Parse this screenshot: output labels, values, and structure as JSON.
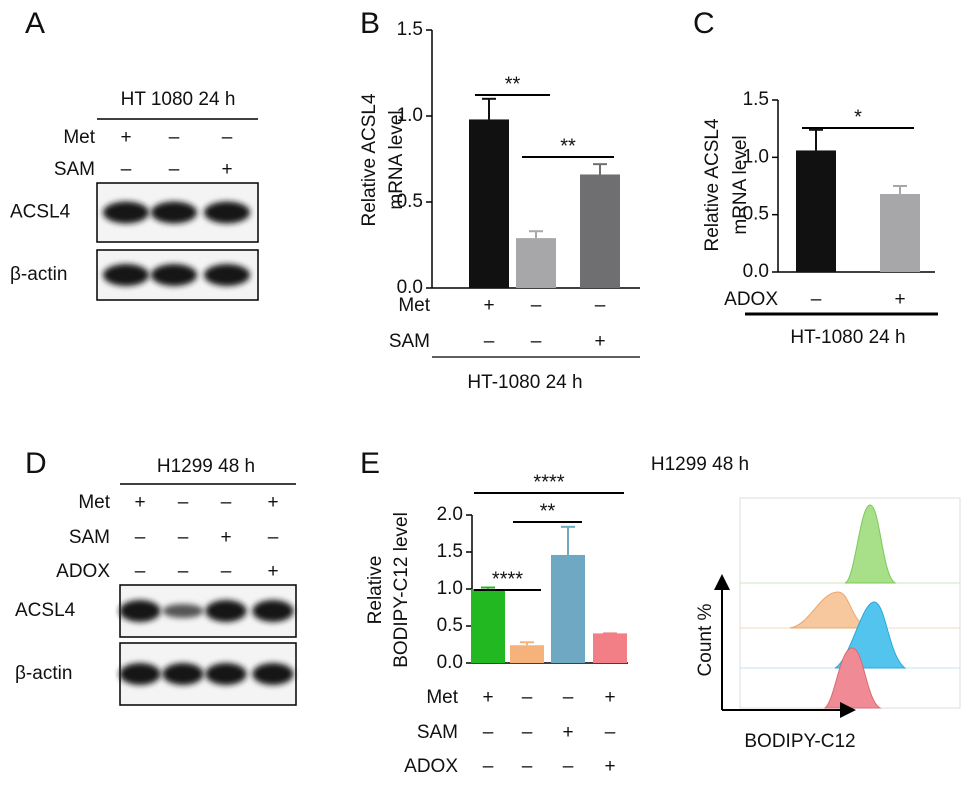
{
  "panel_labels": [
    "A",
    "B",
    "C",
    "D",
    "E"
  ],
  "blots": [
    {
      "title": "HT 1080 24 h",
      "rows": [
        {
          "label": "Met",
          "signs": [
            "+",
            "–",
            "–"
          ]
        },
        {
          "label": "SAM",
          "signs": [
            "–",
            "–",
            "+"
          ]
        }
      ],
      "bands": [
        "ACSL4",
        "β-actin"
      ]
    },
    {
      "title": "H1299 48 h",
      "rows": [
        {
          "label": "Met",
          "signs": [
            "+",
            "–",
            "–",
            "+"
          ]
        },
        {
          "label": "SAM",
          "signs": [
            "–",
            "–",
            "+",
            "–"
          ]
        },
        {
          "label": "ADOX",
          "signs": [
            "–",
            "–",
            "–",
            "+"
          ]
        }
      ],
      "bands": [
        "ACSL4",
        "β-actin"
      ]
    }
  ],
  "panel_e_title": "H1299 48 h",
  "flow": {
    "ylabel": "Count %",
    "xlabel": "BODIPY-C12"
  },
  "chart_data": [
    {
      "type": "bar",
      "ylabel": [
        "Relative ACSL4",
        "mRNA level"
      ],
      "values": [
        0.98,
        0.29,
        0.66
      ],
      "errors": [
        0.12,
        0.04,
        0.06
      ],
      "colors": [
        "#111111",
        "#a7a7aa",
        "#6f6f72"
      ],
      "ylim": [
        0,
        1.5
      ],
      "yticks": [
        {
          "value": 0,
          "label": "0.0"
        },
        0.5,
        {
          "value": 1,
          "label": "1.0"
        },
        1.5
      ],
      "conditions": [
        {
          "label": "Met",
          "signs": [
            "+",
            "–",
            "–"
          ]
        },
        {
          "label": "SAM",
          "signs": [
            "–",
            "–",
            "+"
          ]
        }
      ],
      "footer": "HT-1080 24 h",
      "significance": [
        {
          "between": [
            0,
            1
          ],
          "label": "**"
        },
        {
          "between": [
            1,
            2
          ],
          "label": "**"
        }
      ]
    },
    {
      "type": "bar",
      "ylabel": [
        "Relative ACSL4",
        "mRNA level"
      ],
      "values": [
        1.06,
        0.68
      ],
      "errors": [
        0.18,
        0.07
      ],
      "colors": [
        "#111111",
        "#a7a7aa"
      ],
      "ylim": [
        0,
        1.5
      ],
      "yticks": [
        {
          "value": 0,
          "label": "0.0"
        },
        0.5,
        {
          "value": 1,
          "label": "1.0"
        },
        1.5
      ],
      "conditions": [
        {
          "label": "ADOX",
          "signs": [
            "–",
            "+"
          ]
        }
      ],
      "footer": "HT-1080 24 h",
      "significance": [
        {
          "between": [
            0,
            1
          ],
          "label": "*"
        }
      ]
    },
    {
      "type": "bar",
      "ylabel": [
        "Relative",
        "BODIPY-C12 level"
      ],
      "values": [
        1.0,
        0.24,
        1.46,
        0.4
      ],
      "errors": [
        0.02,
        0.04,
        0.38,
        0
      ],
      "colors": [
        "#22b822",
        "#f5b27a",
        "#6fa8c3",
        "#f37f86"
      ],
      "ylim": [
        0,
        2.0
      ],
      "yticks": [
        {
          "value": 0,
          "label": "0.0"
        },
        0.5,
        {
          "value": 1,
          "label": "1.0"
        },
        1.5,
        {
          "value": 2,
          "label": "2.0"
        }
      ],
      "conditions": [
        {
          "label": "Met",
          "signs": [
            "+",
            "–",
            "–",
            "+"
          ]
        },
        {
          "label": "SAM",
          "signs": [
            "–",
            "–",
            "+",
            "–"
          ]
        },
        {
          "label": "ADOX",
          "signs": [
            "–",
            "–",
            "–",
            "+"
          ]
        }
      ],
      "significance": [
        {
          "between": [
            0,
            3
          ],
          "label": "****"
        },
        {
          "between": [
            1,
            2
          ],
          "label": "**"
        },
        {
          "between": [
            0,
            1
          ],
          "label": "****"
        }
      ]
    }
  ]
}
